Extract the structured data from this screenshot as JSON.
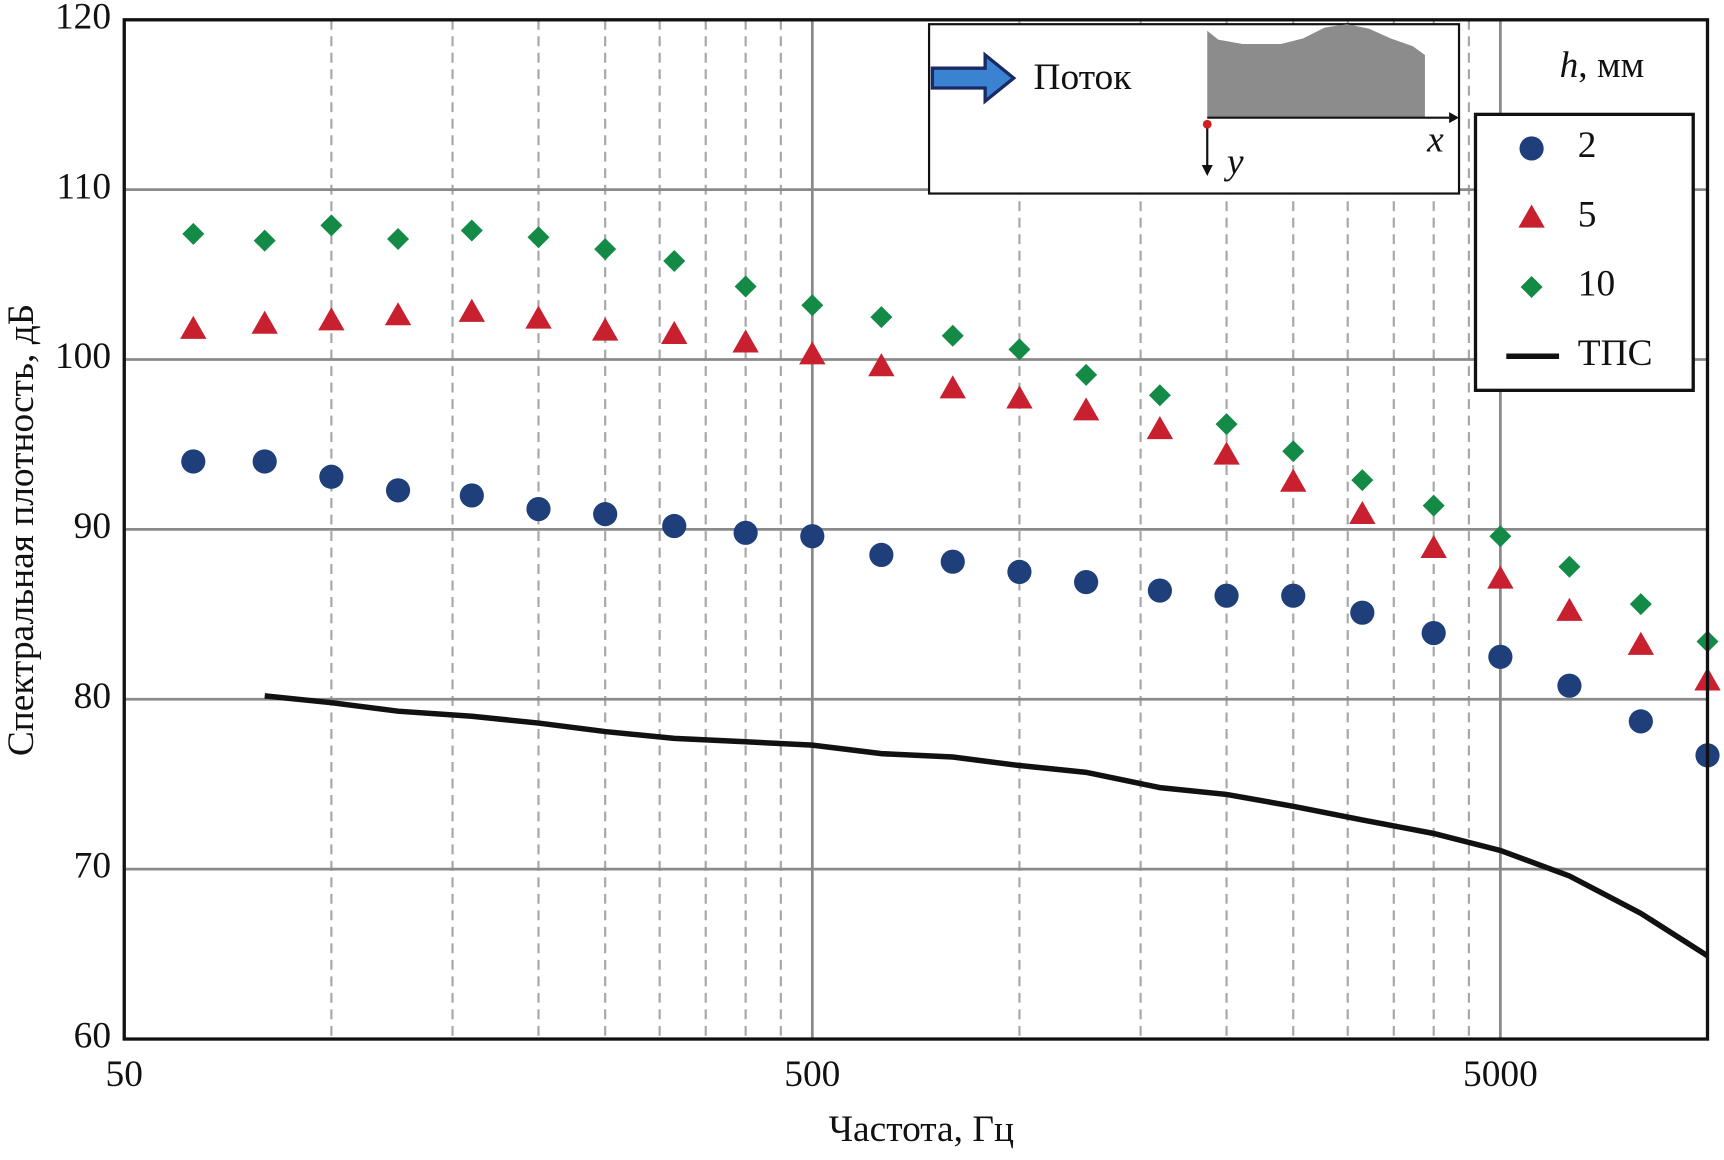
{
  "chart_data": {
    "type": "scatter",
    "x_label": "Частота, Гц",
    "y_label": "Спектральная плотность, дБ",
    "x": [
      63,
      80,
      100,
      125,
      160,
      200,
      250,
      315,
      400,
      500,
      630,
      800,
      1000,
      1250,
      1600,
      2000,
      2500,
      3150,
      4000,
      5000,
      6300,
      8000,
      10000
    ],
    "series": [
      {
        "name": "2",
        "color": "#1f3f7a",
        "marker": "circle",
        "values": [
          94.0,
          94.0,
          93.1,
          92.3,
          92.0,
          91.2,
          90.9,
          90.2,
          89.8,
          89.6,
          88.5,
          88.1,
          87.5,
          86.9,
          86.4,
          86.1,
          86.1,
          85.1,
          83.9,
          82.5,
          80.8,
          78.7,
          76.7
        ]
      },
      {
        "name": "5",
        "color": "#c8202f",
        "marker": "triangle",
        "values": [
          101.8,
          102.1,
          102.3,
          102.6,
          102.8,
          102.4,
          101.7,
          101.5,
          101.0,
          100.3,
          99.6,
          98.3,
          97.7,
          97.0,
          95.9,
          94.4,
          92.8,
          90.9,
          88.9,
          87.1,
          85.2,
          83.2,
          81.1
        ]
      },
      {
        "name": "10",
        "color": "#138a46",
        "marker": "diamond",
        "values": [
          107.4,
          107.0,
          107.9,
          107.1,
          107.6,
          107.2,
          106.5,
          105.8,
          104.3,
          103.2,
          102.5,
          101.4,
          100.6,
          99.1,
          97.9,
          96.2,
          94.6,
          92.9,
          91.4,
          89.6,
          87.8,
          85.6,
          83.4
        ]
      },
      {
        "name": "ТПС",
        "color": "#111111",
        "marker": "line",
        "values": [
          null,
          80.2,
          79.8,
          79.3,
          79.0,
          78.6,
          78.1,
          77.7,
          77.5,
          77.3,
          76.8,
          76.6,
          76.1,
          75.7,
          74.8,
          74.4,
          73.7,
          72.9,
          72.1,
          71.1,
          69.6,
          67.4,
          64.9
        ]
      }
    ],
    "legend_title": "h, мм",
    "legend_position": "upper right",
    "xscale": "log",
    "xlim": [
      50,
      10000
    ],
    "xticks": [
      50,
      500,
      5000
    ],
    "x_minor_grid": [
      100,
      150,
      200,
      250,
      300,
      350,
      400,
      450,
      1000,
      1500,
      2000,
      2500,
      3000,
      3500,
      4000,
      4500
    ],
    "ylim": [
      60,
      120
    ],
    "yticks": [
      60,
      70,
      80,
      90,
      100,
      110,
      120
    ],
    "grid": true,
    "inset": {
      "flow_label": "Поток",
      "x_axis": "x",
      "y_axis": "y"
    }
  }
}
